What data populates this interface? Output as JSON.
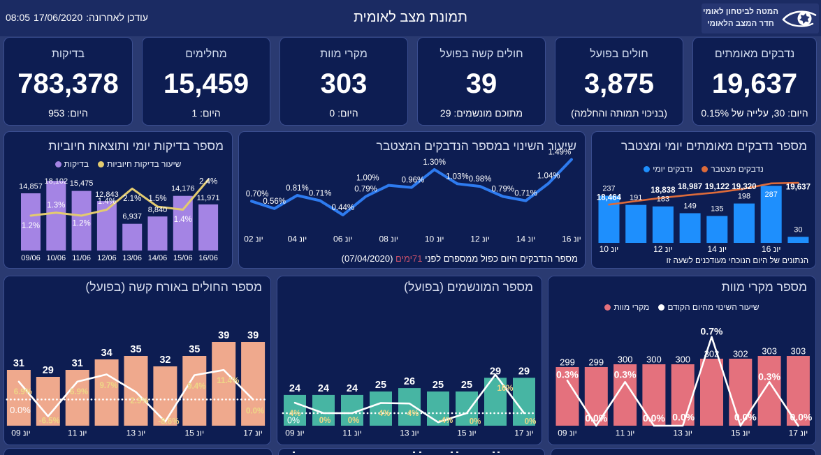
{
  "header": {
    "logo_line1": "המטה לביטחון לאומי",
    "logo_line2": "חדר המצב הלאומי",
    "title": "תמונת מצב לאומית",
    "last_updated_label": "עודכן לאחרונה:",
    "last_updated_date": "17/06/2020",
    "last_updated_time": "08:05"
  },
  "kpis": [
    {
      "title": "נדבקים מאומתים",
      "value": "19,637",
      "sub": "היום: 30, עלייה של 0.15%"
    },
    {
      "title": "חולים בפועל",
      "value": "3,875",
      "sub": "(בניכוי תמותה והחלמה)"
    },
    {
      "title": "חולים קשה בפועל",
      "value": "39",
      "sub": "מתוכם מונשמים: 29"
    },
    {
      "title": "מקרי מוות",
      "value": "303",
      "sub": "היום: 0"
    },
    {
      "title": "מחלימים",
      "value": "15,459",
      "sub": "היום: 1"
    },
    {
      "title": "בדיקות",
      "value": "783,378",
      "sub": "היום: 953"
    }
  ],
  "colors": {
    "page_bg": "#2a3a71",
    "header_bg": "#1b2b63",
    "card_bg": "#0d1d52",
    "card_border": "#3a4d8f",
    "purple_bar": "#a484e4",
    "yellow_line": "#e3cb6f",
    "yellow_label": "#eed787",
    "blue_bar": "#1e8ffd",
    "orange_line": "#dd6b3a",
    "blue_line": "#2e7bef",
    "salmon_bar": "#efa98d",
    "teal_bar": "#47b5a3",
    "red_bar": "#e4717d",
    "white": "#ffffff",
    "footer_highlight": "#c8506a"
  },
  "chart_data": [
    {
      "id": "daily-tests",
      "type": "bar+line",
      "title": "מספר בדיקות יומי ותוצאות חיוביות",
      "legend": [
        {
          "label": "שיעור בדיקות חיוביות",
          "color": "#e3cb6f"
        },
        {
          "label": "בדיקות",
          "color": "#a484e4"
        }
      ],
      "categories": [
        "09/06",
        "10/06",
        "11/06",
        "12/06",
        "13/06",
        "14/06",
        "15/06",
        "16/06"
      ],
      "series": [
        {
          "name": "בדיקות",
          "type": "bar",
          "values": [
            14857,
            18102,
            15475,
            12843,
            6937,
            8840,
            14176,
            11971
          ],
          "labels": [
            "14,857",
            "18,102",
            "15,475",
            "12,843",
            "6,937",
            "8,840",
            "14,176",
            "11,971"
          ]
        },
        {
          "name": "שיעור בדיקות חיוביות",
          "type": "line",
          "values": [
            1.2,
            1.3,
            1.2,
            1.4,
            2.1,
            1.5,
            1.4,
            2.4
          ],
          "labels": [
            "1.2%",
            "1.3%",
            "1.2%",
            "1.4%",
            "2.1%",
            "1.5%",
            "1.4%",
            "2.4%"
          ]
        }
      ]
    },
    {
      "id": "change-rate",
      "type": "line",
      "title": "שיעור השינוי במספר הנדבקים המצטבר",
      "x_tick_labels": [
        "יונ 02",
        "יונ 04",
        "יונ 06",
        "יונ 08",
        "יונ 10",
        "יונ 12",
        "יונ 14",
        "יונ 16"
      ],
      "x_tick_indices": [
        0,
        2,
        4,
        6,
        8,
        10,
        12,
        14
      ],
      "series": [
        {
          "name": "שיעור השינוי",
          "type": "line",
          "values": [
            0.7,
            0.56,
            0.81,
            0.71,
            0.44,
            0.79,
            1.0,
            0.96,
            1.3,
            1.03,
            0.98,
            0.79,
            0.71,
            1.04,
            1.49
          ],
          "labels": [
            "0.70%",
            "0.56%",
            "0.81%",
            "0.71%",
            "0.44%",
            "0.79%",
            "1.00%",
            "0.96%",
            "1.30%",
            "1.03%",
            "0.98%",
            "0.79%",
            "0.71%",
            "1.04%",
            "1.49%"
          ]
        }
      ],
      "footer": {
        "text": "מספר הנדבקים היום כפול ממספרם לפני",
        "highlight": "71ימים",
        "suffix": "(07/04/2020)"
      }
    },
    {
      "id": "daily-cumulative",
      "type": "bar+line",
      "title": "מספר נדבקים מאומתים יומי ומצטבר",
      "legend": [
        {
          "label": "נדבקים מצטבר",
          "color": "#dd6b3a"
        },
        {
          "label": "נדבקים יומי",
          "color": "#1e8ffd"
        }
      ],
      "x_tick_labels": [
        "יונ 10",
        "יונ 12",
        "יונ 14",
        "יונ 16"
      ],
      "x_tick_indices": [
        0,
        2,
        4,
        6
      ],
      "series": [
        {
          "name": "נדבקים יומי",
          "type": "bar",
          "values": [
            237,
            191,
            183,
            149,
            135,
            198,
            287,
            30
          ],
          "labels": [
            "237",
            "191",
            "183",
            "149",
            "135",
            "198",
            "287",
            "30"
          ]
        },
        {
          "name": "נדבקים מצטבר",
          "type": "line",
          "values": [
            18464,
            18655,
            18838,
            18987,
            19122,
            19320,
            19607,
            19637
          ],
          "labels": [
            "18,464",
            "",
            "18,838",
            "18,987",
            "19,122",
            "19,320",
            "",
            "19,637"
          ]
        }
      ],
      "footer": {
        "text": "הנתונים של היום הנוכחי מעודכנים לשעה זו"
      }
    },
    {
      "id": "severe",
      "type": "bar+line",
      "title": "מספר החולים באורח קשה (בפועל)",
      "x_tick_labels": [
        "יונ 09",
        "יונ 11",
        "יונ 13",
        "יונ 15",
        "יונ 17"
      ],
      "x_tick_indices": [
        0,
        2,
        4,
        6,
        8
      ],
      "series": [
        {
          "name": "חולים קשה",
          "type": "bar",
          "values": [
            31,
            29,
            31,
            34,
            35,
            32,
            35,
            39,
            39
          ],
          "labels": [
            "31",
            "29",
            "31",
            "34",
            "35",
            "32",
            "35",
            "39",
            "39"
          ]
        },
        {
          "name": "שיעור השינוי מהיום הקודם",
          "type": "line",
          "values": [
            6.9,
            -6.5,
            6.9,
            9.7,
            2.9,
            -8.6,
            9.4,
            11.4,
            0.0
          ],
          "labels": [
            "6.9%",
            "-6.5%",
            "6.9%",
            "9.7%",
            "2.9%",
            "-8.6%",
            "9.4%",
            "11.4%",
            "0.0%"
          ]
        }
      ],
      "zero_line_label": "0.0%"
    },
    {
      "id": "ventilated",
      "type": "bar+line",
      "title": "מספר המונשמים (בפועל)",
      "x_tick_labels": [
        "יונ 09",
        "יונ 11",
        "יונ 13",
        "יונ 15",
        "יונ 17"
      ],
      "x_tick_indices": [
        0,
        2,
        4,
        6,
        8
      ],
      "series": [
        {
          "name": "מונשמים",
          "type": "bar",
          "values": [
            24,
            24,
            24,
            25,
            26,
            25,
            25,
            29,
            29
          ],
          "labels": [
            "24",
            "24",
            "24",
            "25",
            "26",
            "25",
            "25",
            "29",
            "29"
          ]
        },
        {
          "name": "שיעור השינוי מהיום הקודם",
          "type": "line",
          "values": [
            4.3,
            0,
            0,
            4.2,
            4.0,
            -3.8,
            0,
            16,
            0
          ],
          "labels": [
            "4%",
            "0%",
            "0%",
            "4%",
            "4%",
            "-4%",
            "0%",
            "16%",
            "0%"
          ]
        }
      ],
      "zero_line_label": "0%"
    },
    {
      "id": "deaths",
      "type": "bar+line",
      "title": "מספר מקרי מוות",
      "legend": [
        {
          "label": "שיעור השינוי מהיום הקודם",
          "color": "#ffffff"
        },
        {
          "label": "מקרי מוות",
          "color": "#e4717d"
        }
      ],
      "x_tick_labels": [
        "יונ 09",
        "יונ 11",
        "יונ 13",
        "יונ 15",
        "יונ 17"
      ],
      "x_tick_indices": [
        0,
        2,
        4,
        6,
        8
      ],
      "series": [
        {
          "name": "מקרי מוות",
          "type": "bar",
          "values": [
            299,
            299,
            300,
            300,
            300,
            302,
            302,
            303,
            303
          ],
          "labels": [
            "299",
            "299",
            "300",
            "300",
            "300",
            "302",
            "302",
            "303",
            "303"
          ]
        },
        {
          "name": "שיעור השינוי מהיום הקודם",
          "type": "line",
          "values": [
            0.34,
            0,
            0.33,
            0,
            0,
            0.67,
            0,
            0.33,
            0
          ],
          "labels": [
            "0.3%",
            "0.0%",
            "0.3%",
            "0.0%",
            "0.0%",
            "0.7%",
            "0.0%",
            "0.3%",
            "0.0%"
          ]
        }
      ]
    }
  ]
}
